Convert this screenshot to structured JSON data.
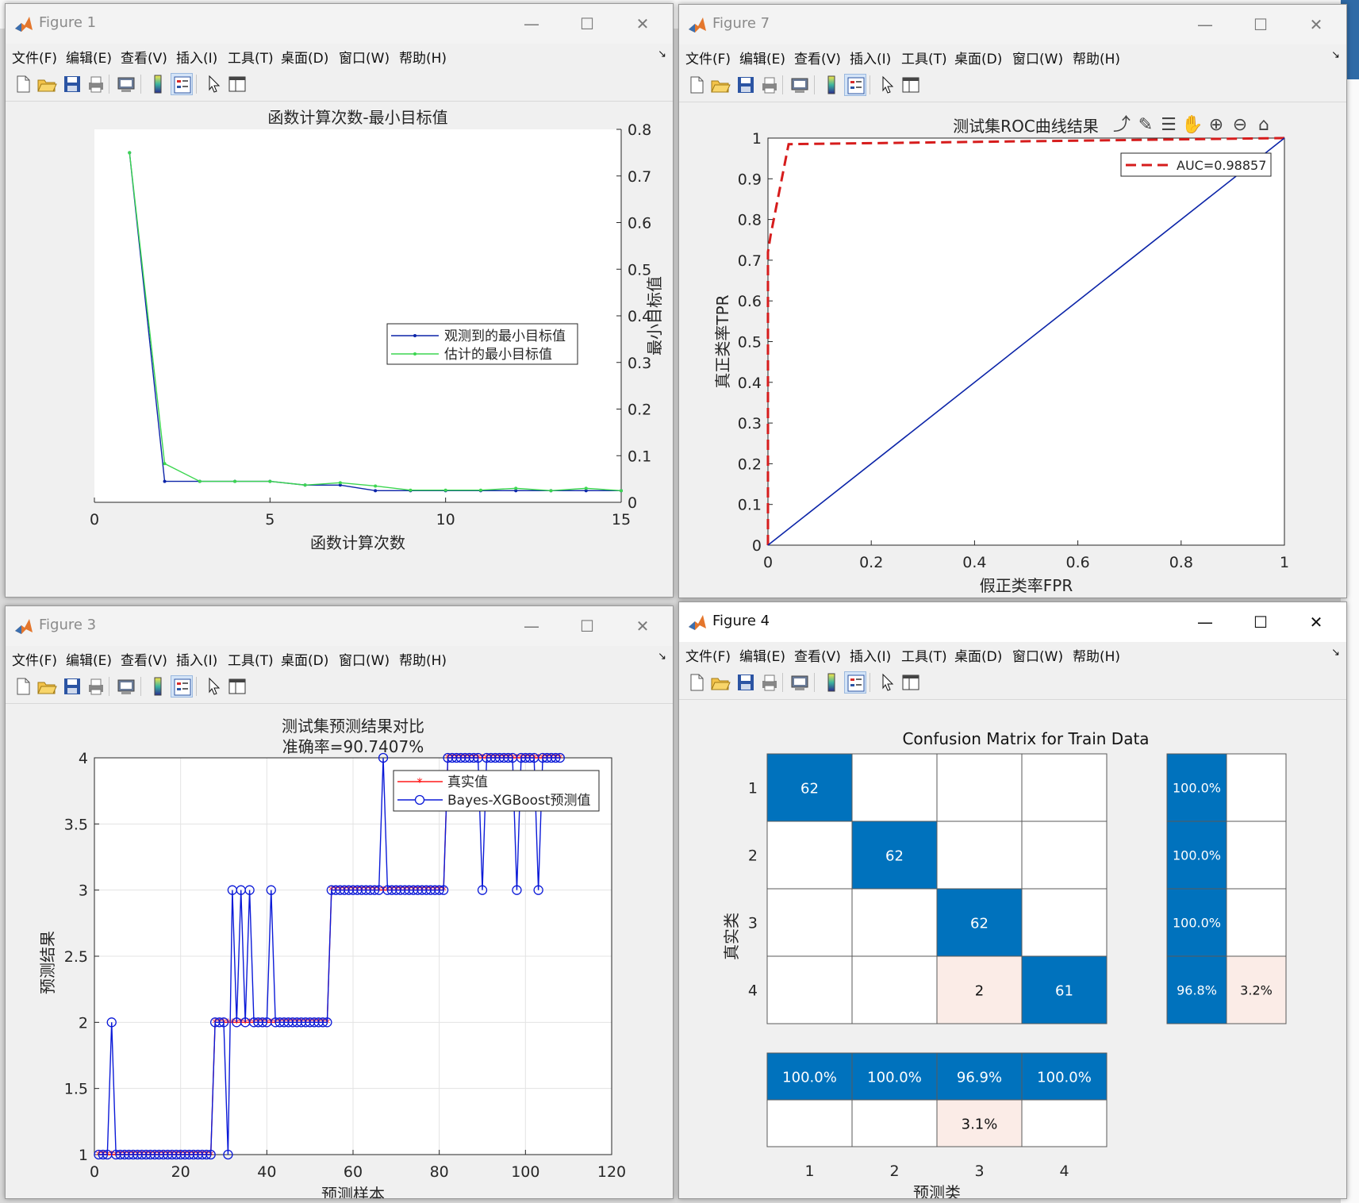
{
  "menu": [
    "文件(F)",
    "编辑(E)",
    "查看(V)",
    "插入(I)",
    "工具(T)",
    "桌面(D)",
    "窗口(W)",
    "帮助(H)"
  ],
  "window_controls": {
    "minimize": "—",
    "maximize": "☐",
    "close": "✕"
  },
  "figure1": {
    "window_title": "Figure 1",
    "chart_data": {
      "type": "line",
      "title": "函数计算次数-最小目标值",
      "xlabel": "函数计算次数",
      "ylabel": "最小目标值",
      "xlim": [
        0,
        15
      ],
      "ylim": [
        0,
        0.8
      ],
      "x_ticks": [
        "0",
        "5",
        "10",
        "15"
      ],
      "y_ticks": [
        "0",
        "0.1",
        "0.2",
        "0.3",
        "0.4",
        "0.5",
        "0.6",
        "0.7",
        "0.8"
      ],
      "y_axis_side": "right",
      "legend_position": "middle-right",
      "series": [
        {
          "name": "观测到的最小目标值",
          "color": "#0b24a8",
          "x": [
            1,
            2,
            3,
            4,
            5,
            6,
            7,
            8,
            9,
            10,
            11,
            12,
            13,
            14,
            15
          ],
          "y": [
            0.75,
            0.045,
            0.045,
            0.045,
            0.045,
            0.037,
            0.037,
            0.025,
            0.025,
            0.025,
            0.025,
            0.025,
            0.025,
            0.025,
            0.025
          ]
        },
        {
          "name": "估计的最小目标值",
          "color": "#3cd650",
          "x": [
            1,
            2,
            3,
            4,
            5,
            6,
            7,
            8,
            9,
            10,
            11,
            12,
            13,
            14,
            15
          ],
          "y": [
            0.75,
            0.083,
            0.045,
            0.045,
            0.045,
            0.037,
            0.042,
            0.035,
            0.026,
            0.026,
            0.026,
            0.03,
            0.025,
            0.03,
            0.025
          ]
        }
      ]
    }
  },
  "figure7": {
    "window_title": "Figure 7",
    "axes_toolbar": [
      "export-icon",
      "brush-icon",
      "datatip-icon",
      "pan-icon",
      "zoom-in-icon",
      "zoom-out-icon",
      "home-icon"
    ],
    "chart_data": {
      "type": "line",
      "title": "测试集ROC曲线结果",
      "xlabel": "假正类率FPR",
      "ylabel": "真正类率TPR",
      "xlim": [
        0,
        1
      ],
      "ylim": [
        0,
        1
      ],
      "x_ticks": [
        "0",
        "0.2",
        "0.4",
        "0.6",
        "0.8",
        "1"
      ],
      "y_ticks": [
        "0",
        "0.1",
        "0.2",
        "0.3",
        "0.4",
        "0.5",
        "0.6",
        "0.7",
        "0.8",
        "0.9",
        "1"
      ],
      "legend_position": "top-right",
      "series": [
        {
          "name": "AUC=0.98857",
          "color": "#d61c1c",
          "dashed": true,
          "x": [
            0,
            0,
            0.005,
            0.04,
            1
          ],
          "y": [
            0,
            0.72,
            0.76,
            0.985,
            1
          ]
        },
        {
          "name": "",
          "color": "#0b24a8",
          "dashed": false,
          "x": [
            0,
            1
          ],
          "y": [
            0,
            1
          ]
        }
      ]
    }
  },
  "figure3": {
    "window_title": "Figure 3",
    "chart_data": {
      "type": "line",
      "title": "测试集预测结果对比",
      "subtitle": "准确率=90.7407%",
      "xlabel": "预测样本",
      "ylabel": "预测结果",
      "xlim": [
        0,
        120
      ],
      "ylim": [
        1,
        4
      ],
      "x_ticks": [
        "0",
        "20",
        "40",
        "60",
        "80",
        "100",
        "120"
      ],
      "y_ticks": [
        "1",
        "1.5",
        "2",
        "2.5",
        "3",
        "3.5",
        "4"
      ],
      "grid": true,
      "legend_position": "top-right",
      "series": [
        {
          "name": "真实值",
          "color": "#ff1a1a",
          "marker": "*",
          "segments": [
            {
              "from": 1,
              "to": 27,
              "value": 1
            },
            {
              "from": 28,
              "to": 54,
              "value": 2
            },
            {
              "from": 55,
              "to": 81,
              "value": 3
            },
            {
              "from": 82,
              "to": 108,
              "value": 4
            }
          ]
        },
        {
          "name": "Bayes-XGBoost预测值",
          "color": "#0b1ad8",
          "marker": "o",
          "segments": [
            {
              "from": 1,
              "to": 27,
              "value": 1
            },
            {
              "from": 28,
              "to": 54,
              "value": 2
            },
            {
              "from": 55,
              "to": 81,
              "value": 3
            },
            {
              "from": 82,
              "to": 108,
              "value": 4
            }
          ],
          "overrides": [
            [
              4,
              2
            ],
            [
              31,
              1
            ],
            [
              32,
              3
            ],
            [
              34,
              3
            ],
            [
              36,
              3
            ],
            [
              41,
              3
            ],
            [
              67,
              4
            ],
            [
              90,
              3
            ],
            [
              98,
              3
            ],
            [
              103,
              3
            ]
          ]
        }
      ]
    }
  },
  "figure4": {
    "window_title": "Figure 4",
    "chart_data": {
      "type": "heatmap",
      "title": "Confusion Matrix for Train Data",
      "xlabel": "预测类",
      "ylabel": "真实类",
      "classes": [
        "1",
        "2",
        "3",
        "4"
      ],
      "matrix": [
        [
          62,
          0,
          0,
          0
        ],
        [
          0,
          62,
          0,
          0
        ],
        [
          0,
          0,
          62,
          0
        ],
        [
          0,
          0,
          2,
          61
        ]
      ],
      "row_summary": [
        [
          "100.0%",
          ""
        ],
        [
          "100.0%",
          ""
        ],
        [
          "100.0%",
          ""
        ],
        [
          "96.8%",
          "3.2%"
        ]
      ],
      "column_summary": [
        [
          "100.0%",
          ""
        ],
        [
          "100.0%",
          ""
        ],
        [
          "96.9%",
          "3.1%"
        ],
        [
          "100.0%",
          ""
        ]
      ],
      "colors": {
        "correct": "#0072bd",
        "error": "#fbece7"
      }
    }
  }
}
